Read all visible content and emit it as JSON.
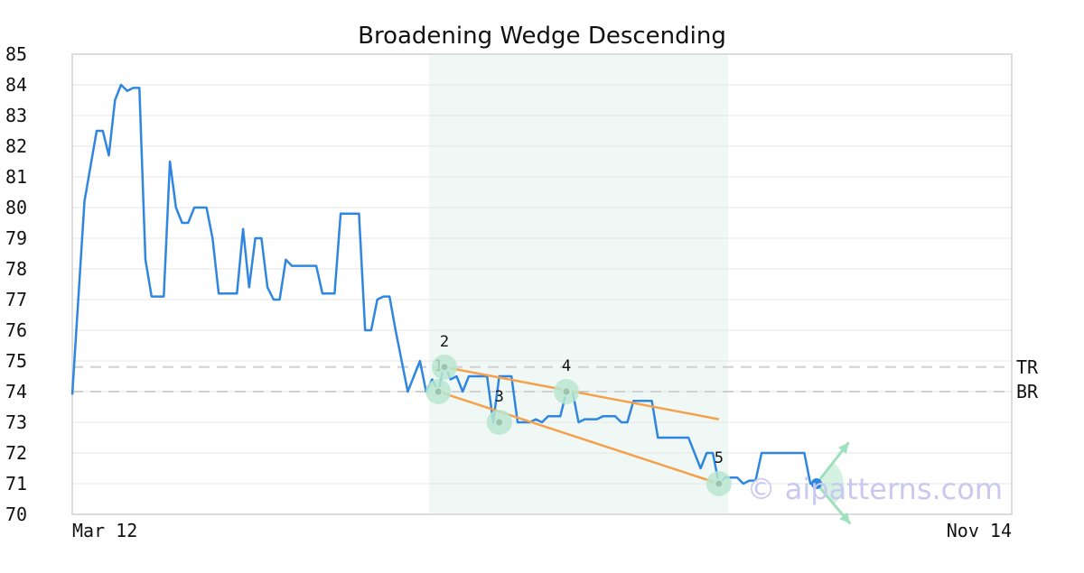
{
  "chart_data": {
    "type": "line",
    "title": "Broadening Wedge Descending",
    "xlabel": "",
    "ylabel": "",
    "ylim": [
      70,
      85
    ],
    "yticks": [
      70,
      71,
      72,
      73,
      74,
      75,
      76,
      77,
      78,
      79,
      80,
      81,
      82,
      83,
      84,
      85
    ],
    "x_tick_labels": [
      "Mar 12",
      "Nov 14"
    ],
    "grid": "horizontal",
    "colors": {
      "price_line": "#2f86e0",
      "trend_line": "#f5a04a",
      "highlight": "#e6f4ee",
      "marker_halo": "#b9e6cf",
      "current_point": "#2f86e0",
      "arrow": "#9fe0bd",
      "ref_line": "#d0d0d0",
      "watermark": "#c8c8f0"
    },
    "series": [
      {
        "values": [
          [
            0,
            73.9
          ],
          [
            2,
            80.2
          ],
          [
            4,
            82.5
          ],
          [
            5,
            82.5
          ],
          [
            6,
            81.7
          ],
          [
            7,
            83.5
          ],
          [
            8,
            84
          ],
          [
            9,
            83.8
          ],
          [
            10,
            83.9
          ],
          [
            11,
            83.9
          ],
          [
            12,
            78.3
          ],
          [
            13,
            77.1
          ],
          [
            14,
            77.1
          ],
          [
            15,
            77.1
          ],
          [
            16,
            81.5
          ],
          [
            17,
            80
          ],
          [
            18,
            79.5
          ],
          [
            19,
            79.5
          ],
          [
            20,
            80
          ],
          [
            22,
            80
          ],
          [
            23,
            79
          ],
          [
            24,
            77.2
          ],
          [
            27,
            77.2
          ],
          [
            28,
            79.3
          ],
          [
            29,
            77.4
          ],
          [
            30,
            79
          ],
          [
            31,
            79
          ],
          [
            32,
            77.4
          ],
          [
            33,
            77
          ],
          [
            34,
            77
          ],
          [
            35,
            78.3
          ],
          [
            36,
            78.1
          ],
          [
            40,
            78.1
          ],
          [
            41,
            77.2
          ],
          [
            43,
            77.2
          ],
          [
            44,
            79.8
          ],
          [
            47,
            79.8
          ],
          [
            48,
            76
          ],
          [
            49,
            76
          ],
          [
            50,
            77
          ],
          [
            51,
            77.1
          ],
          [
            52,
            77.1
          ],
          [
            53,
            76
          ],
          [
            55,
            74
          ],
          [
            57,
            75
          ],
          [
            58,
            74
          ],
          [
            59,
            74.4
          ],
          [
            60,
            74
          ],
          [
            61,
            74.9
          ],
          [
            62,
            74.4
          ],
          [
            63,
            74.5
          ],
          [
            64,
            74
          ],
          [
            65,
            74.5
          ],
          [
            68,
            74.5
          ],
          [
            69,
            73
          ],
          [
            70,
            74.5
          ],
          [
            72,
            74.5
          ],
          [
            73,
            73
          ],
          [
            75,
            73
          ],
          [
            76,
            73.1
          ],
          [
            77,
            73
          ],
          [
            78,
            73.2
          ],
          [
            80,
            73.2
          ],
          [
            81,
            74
          ],
          [
            82,
            74
          ],
          [
            83,
            73
          ],
          [
            84,
            73.1
          ],
          [
            86,
            73.1
          ],
          [
            87,
            73.2
          ],
          [
            89,
            73.2
          ],
          [
            90,
            73
          ],
          [
            91,
            73
          ],
          [
            92,
            73.7
          ],
          [
            95,
            73.7
          ],
          [
            96,
            72.5
          ],
          [
            101,
            72.5
          ],
          [
            103,
            71.5
          ],
          [
            104,
            72
          ],
          [
            105,
            72
          ],
          [
            106,
            71
          ],
          [
            107,
            71.2
          ],
          [
            109,
            71.2
          ],
          [
            110,
            71
          ],
          [
            111,
            71.1
          ],
          [
            112,
            71.1
          ],
          [
            113,
            72
          ],
          [
            120,
            72
          ],
          [
            121,
            71
          ],
          [
            122,
            71
          ]
        ]
      }
    ],
    "pattern_points": [
      {
        "label": "1",
        "x": 60,
        "y": 74
      },
      {
        "label": "2",
        "x": 61,
        "y": 74.8
      },
      {
        "label": "3",
        "x": 70,
        "y": 73
      },
      {
        "label": "4",
        "x": 81,
        "y": 74
      },
      {
        "label": "5",
        "x": 106,
        "y": 71
      }
    ],
    "trend_lines": [
      {
        "from": [
          61,
          74.8
        ],
        "to": [
          106,
          73.1
        ]
      },
      {
        "from": [
          60,
          74
        ],
        "to": [
          106,
          71
        ]
      }
    ],
    "highlight_range": [
      58.5,
      107.5
    ],
    "reference_lines": [
      {
        "label": "TR",
        "y": 74.8
      },
      {
        "label": "BR",
        "y": 74
      }
    ],
    "current_point": {
      "x": 122,
      "y": 71
    },
    "watermark": "© aipatterns.com"
  }
}
